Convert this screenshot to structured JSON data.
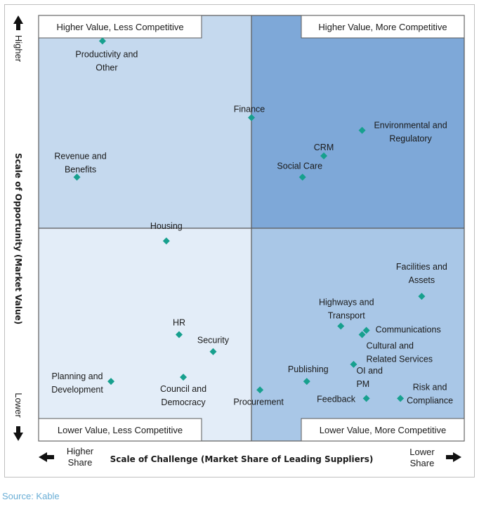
{
  "chart_data": {
    "type": "scatter",
    "title": "",
    "xlabel": "Scale of Challenge (Market Share of Leading Suppliers)",
    "ylabel": "Scale of Opportunity (Market Value)",
    "xlim": [
      0,
      100
    ],
    "ylim": [
      0,
      100
    ],
    "x_low_label": "Higher Share",
    "x_high_label": "Lower Share",
    "y_high_label": "Higher",
    "y_low_label": "Lower",
    "quadrants": {
      "top_left": "Higher Value, Less Competitive",
      "top_right": "Higher Value, More Competitive",
      "bottom_left": "Lower Value, Less Competitive",
      "bottom_right": "Lower Value, More Competitive"
    },
    "colors": {
      "top_left": "#c5d9ee",
      "top_right": "#7ea8d8",
      "bottom_left": "#e3edf8",
      "bottom_right": "#a9c7e7",
      "marker": "#17a08e"
    },
    "points": [
      {
        "label": "Productivity and Other",
        "x": 15,
        "y": 94
      },
      {
        "label": "Finance",
        "x": 50,
        "y": 76
      },
      {
        "label": "Environmental and Regulatory",
        "x": 76,
        "y": 73
      },
      {
        "label": "CRM",
        "x": 67,
        "y": 67
      },
      {
        "label": "Revenue and Benefits",
        "x": 9,
        "y": 62
      },
      {
        "label": "Social Care",
        "x": 62,
        "y": 62
      },
      {
        "label": "Housing",
        "x": 30,
        "y": 47
      },
      {
        "label": "Facilities and Assets",
        "x": 90,
        "y": 34
      },
      {
        "label": "Highways and Transport",
        "x": 71,
        "y": 27
      },
      {
        "label": "Communications",
        "x": 77,
        "y": 26
      },
      {
        "label": "Cultural and Related Services",
        "x": 76,
        "y": 25
      },
      {
        "label": "HR",
        "x": 33,
        "y": 25
      },
      {
        "label": "Security",
        "x": 41,
        "y": 21
      },
      {
        "label": "OI and PM",
        "x": 74,
        "y": 18
      },
      {
        "label": "Council and Democracy",
        "x": 34,
        "y": 15
      },
      {
        "label": "Planning and Development",
        "x": 17,
        "y": 14
      },
      {
        "label": "Publishing",
        "x": 63,
        "y": 14
      },
      {
        "label": "Procurement",
        "x": 52,
        "y": 12
      },
      {
        "label": "Feedback",
        "x": 77,
        "y": 10
      },
      {
        "label": "Risk and Compliance",
        "x": 85,
        "y": 10
      }
    ]
  },
  "source": "Source: Kable"
}
